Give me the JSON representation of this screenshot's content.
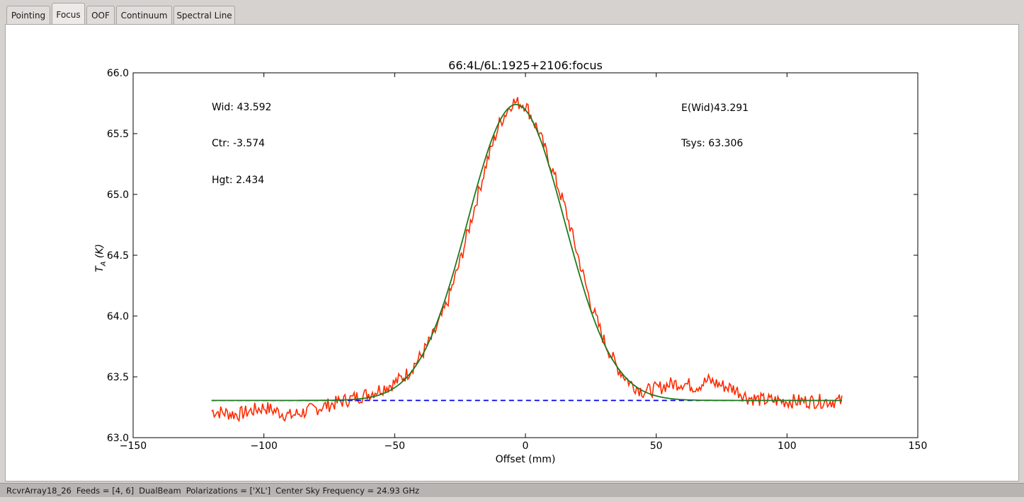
{
  "tabs": [
    {
      "label": "Pointing",
      "active": false
    },
    {
      "label": "Focus",
      "active": true
    },
    {
      "label": "OOF",
      "active": false
    },
    {
      "label": "Continuum",
      "active": false
    },
    {
      "label": "Spectral Line",
      "active": false
    }
  ],
  "status": {
    "receiver": "RcvrArray18_26",
    "feeds": "Feeds = [4, 6]",
    "mode": "DualBeam",
    "polarizations": "Polarizations = ['XL']",
    "frequency": "Center Sky Frequency = 24.93 GHz"
  },
  "chart_data": {
    "type": "line",
    "title": "66:4L/6L:1925+2106:focus",
    "xlabel": "Offset (mm)",
    "ylabel": "T_A (K)",
    "xlim": [
      -150,
      150
    ],
    "ylim": [
      63.0,
      66.0
    ],
    "xticks": [
      -150,
      -100,
      -50,
      0,
      50,
      100,
      150
    ],
    "xtick_labels": [
      "−150",
      "−100",
      "−50",
      "0",
      "50",
      "100",
      "150"
    ],
    "yticks": [
      63.0,
      63.5,
      64.0,
      64.5,
      65.0,
      65.5,
      66.0
    ],
    "ytick_labels": [
      "63.0",
      "63.5",
      "64.0",
      "64.5",
      "65.0",
      "65.5",
      "66.0"
    ],
    "grid": false,
    "annotations": [
      {
        "text": "Wid: 43.592",
        "pos": "upper-left"
      },
      {
        "text": "Ctr: -3.574",
        "pos": "upper-left"
      },
      {
        "text": "Hgt: 2.434",
        "pos": "upper-left"
      },
      {
        "text": "E(Wid)43.291",
        "pos": "upper-right"
      },
      {
        "text": "Tsys: 63.306",
        "pos": "upper-right"
      }
    ],
    "series": [
      {
        "role": "data",
        "color": "#ff2a00",
        "style": "solid",
        "x": [
          -120,
          -110,
          -100,
          -90,
          -80,
          -70,
          -60,
          -50,
          -45,
          -40,
          -35,
          -30,
          -25,
          -20,
          -15,
          -10,
          -5,
          0,
          5,
          10,
          15,
          20,
          25,
          30,
          35,
          40,
          45,
          50,
          55,
          60,
          65,
          70,
          75,
          80,
          85,
          90,
          100,
          110,
          120
        ],
        "y": [
          63.22,
          63.19,
          63.25,
          63.18,
          63.24,
          63.3,
          63.36,
          63.45,
          63.53,
          63.67,
          63.85,
          64.1,
          64.45,
          64.85,
          65.25,
          65.58,
          65.76,
          65.74,
          65.52,
          65.22,
          64.9,
          64.5,
          64.1,
          63.8,
          63.58,
          63.45,
          63.38,
          63.4,
          63.44,
          63.45,
          63.42,
          63.47,
          63.43,
          63.4,
          63.33,
          63.31,
          63.3,
          63.3,
          63.3
        ]
      },
      {
        "role": "fit",
        "color": "#1f7a1f",
        "style": "solid",
        "function": "gaussian",
        "center": -3.574,
        "fwhm": 43.592,
        "height": 2.434,
        "baseline": 63.306,
        "xrange": [
          -120,
          121
        ]
      },
      {
        "role": "baseline",
        "color": "#0000ee",
        "style": "dashed",
        "x": [
          -120,
          121
        ],
        "y": [
          63.306,
          63.306
        ]
      }
    ]
  }
}
